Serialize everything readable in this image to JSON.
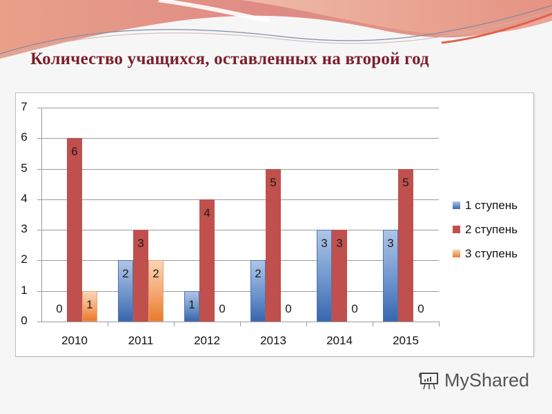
{
  "slide": {
    "title": "Количество учащихся, оставленных на второй год"
  },
  "watermark": {
    "text": "MyShared",
    "icon": "presentation-board-icon"
  },
  "colors": {
    "series1": "#4f81bd",
    "series2": "#c0504d",
    "series3": "#f79646",
    "title": "#7b1f2b"
  },
  "chart_data": {
    "type": "bar",
    "title": "Количество учащихся, оставленных на второй год",
    "xlabel": "",
    "ylabel": "",
    "categories": [
      "2010",
      "2011",
      "2012",
      "2013",
      "2014",
      "2015"
    ],
    "series": [
      {
        "name": "1 ступень",
        "values": [
          0,
          2,
          1,
          2,
          3,
          3
        ]
      },
      {
        "name": "2 ступень",
        "values": [
          6,
          3,
          4,
          5,
          3,
          5
        ]
      },
      {
        "name": "3 ступень",
        "values": [
          1,
          2,
          0,
          0,
          0,
          0
        ]
      }
    ],
    "ylim": [
      0,
      7
    ],
    "yticks": [
      "0",
      "1",
      "2",
      "3",
      "4",
      "5",
      "6",
      "7"
    ],
    "grid": true,
    "legend_position": "right",
    "data_labels": true
  }
}
